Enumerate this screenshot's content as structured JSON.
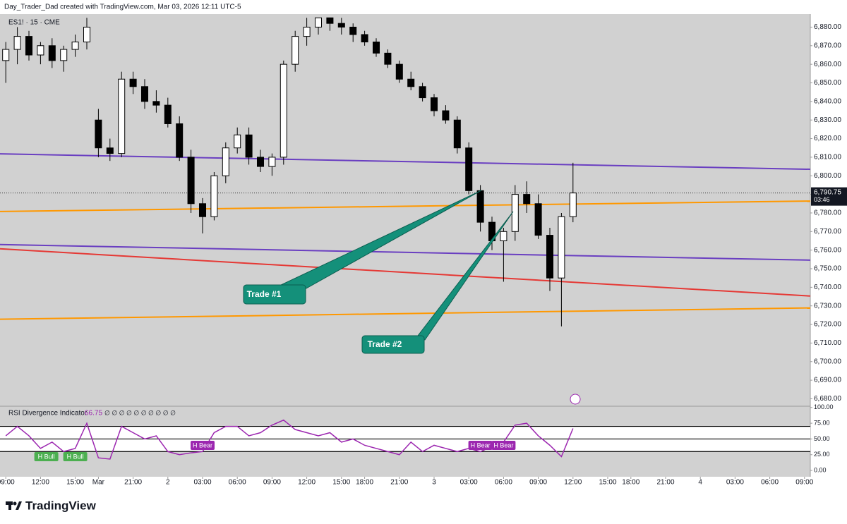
{
  "header": {
    "text": "Day_Trader_Dad created with TradingView.com, Mar 03, 2026 12:11 UTC-5",
    "symbol": "ES1! · 15 · CME",
    "brand": "TradingView"
  },
  "chart_data": [
    {
      "type": "candlestick",
      "x": [
        0,
        1,
        2,
        3,
        4,
        5,
        6,
        7,
        8,
        9,
        10,
        11,
        12,
        13,
        14,
        15,
        16,
        17,
        18,
        19,
        20,
        21,
        22,
        23,
        24,
        25,
        26,
        27,
        28,
        29,
        30,
        31,
        32,
        33,
        34,
        35,
        36,
        37,
        38,
        39,
        40,
        41,
        42,
        43,
        44,
        45,
        46,
        47,
        48,
        49
      ],
      "open": [
        6862,
        6868,
        6875,
        6865,
        6870,
        6862,
        6868,
        6872,
        6830,
        6815,
        6812,
        6852,
        6848,
        6840,
        6838,
        6828,
        6810,
        6785,
        6778,
        6800,
        6815,
        6822,
        6810,
        6805,
        6810,
        6860,
        6875,
        6880,
        6885,
        6882,
        6880,
        6876,
        6872,
        6866,
        6860,
        6852,
        6848,
        6842,
        6835,
        6830,
        6815,
        6792,
        6775,
        6765,
        6770,
        6790,
        6785,
        6768,
        6745,
        6778
      ],
      "high": [
        6872,
        6880,
        6878,
        6872,
        6874,
        6870,
        6876,
        6885,
        6836,
        6820,
        6856,
        6856,
        6852,
        6846,
        6842,
        6832,
        6814,
        6788,
        6802,
        6818,
        6826,
        6826,
        6814,
        6812,
        6862,
        6878,
        6885,
        6885,
        6885,
        6885,
        6882,
        6878,
        6874,
        6868,
        6862,
        6856,
        6850,
        6844,
        6838,
        6832,
        6818,
        6795,
        6778,
        6772,
        6795,
        6797,
        6790,
        6772,
        6780,
        6807
      ],
      "low": [
        6850,
        6860,
        6862,
        6860,
        6858,
        6856,
        6864,
        6868,
        6810,
        6808,
        6810,
        6844,
        6836,
        6834,
        6826,
        6808,
        6780,
        6769,
        6776,
        6796,
        6812,
        6806,
        6802,
        6800,
        6806,
        6856,
        6870,
        6876,
        6878,
        6876,
        6872,
        6870,
        6864,
        6858,
        6850,
        6846,
        6840,
        6832,
        6828,
        6812,
        6790,
        6770,
        6760,
        6743,
        6765,
        6780,
        6766,
        6738,
        6719,
        6775
      ],
      "close": [
        6868,
        6875,
        6865,
        6870,
        6862,
        6868,
        6872,
        6880,
        6815,
        6812,
        6852,
        6848,
        6840,
        6838,
        6828,
        6810,
        6785,
        6778,
        6800,
        6815,
        6822,
        6810,
        6805,
        6810,
        6860,
        6875,
        6880,
        6885,
        6882,
        6880,
        6876,
        6872,
        6866,
        6860,
        6852,
        6848,
        6842,
        6835,
        6830,
        6815,
        6792,
        6775,
        6765,
        6770,
        6790,
        6785,
        6768,
        6745,
        6778,
        6790.75
      ],
      "up_color": "#ffffff",
      "down_color": "#000000",
      "xlim": [
        -0.5,
        69.5
      ],
      "ylim": [
        6676,
        6887
      ],
      "yticks": [
        {
          "value": 6680,
          "label": "6,680.00"
        },
        {
          "value": 6690,
          "label": "6,690.00"
        },
        {
          "value": 6700,
          "label": "6,700.00"
        },
        {
          "value": 6710,
          "label": "6,710.00"
        },
        {
          "value": 6720,
          "label": "6,720.00"
        },
        {
          "value": 6730,
          "label": "6,730.00"
        },
        {
          "value": 6740,
          "label": "6,740.00"
        },
        {
          "value": 6750,
          "label": "6,750.00"
        },
        {
          "value": 6760,
          "label": "6,760.00"
        },
        {
          "value": 6770,
          "label": "6,770.00"
        },
        {
          "value": 6780,
          "label": "6,780.00"
        },
        {
          "value": 6790,
          "label": "6,790.00"
        },
        {
          "value": 6800,
          "label": "6,800.00"
        },
        {
          "value": 6810,
          "label": "6,810.00"
        },
        {
          "value": 6820,
          "label": "6,820.00"
        },
        {
          "value": 6830,
          "label": "6,830.00"
        },
        {
          "value": 6840,
          "label": "6,840.00"
        },
        {
          "value": 6850,
          "label": "6,850.00"
        },
        {
          "value": 6860,
          "label": "6,860.00"
        },
        {
          "value": 6870,
          "label": "6,870.00"
        },
        {
          "value": 6880,
          "label": "6,880.00"
        }
      ],
      "xticks": [
        {
          "value": 0,
          "label": "09:00"
        },
        {
          "value": 3,
          "label": "12:00"
        },
        {
          "value": 6,
          "label": "15:00"
        },
        {
          "value": 8,
          "label": "Mar"
        },
        {
          "value": 11,
          "label": "21:00"
        },
        {
          "value": 14,
          "label": "2"
        },
        {
          "value": 17,
          "label": "03:00"
        },
        {
          "value": 20,
          "label": "06:00"
        },
        {
          "value": 23,
          "label": "09:00"
        },
        {
          "value": 26,
          "label": "12:00"
        },
        {
          "value": 29,
          "label": "15:00"
        },
        {
          "value": 31,
          "label": "18:00"
        },
        {
          "value": 34,
          "label": "21:00"
        },
        {
          "value": 37,
          "label": "3"
        },
        {
          "value": 40,
          "label": "03:00"
        },
        {
          "value": 43,
          "label": "06:00"
        },
        {
          "value": 46,
          "label": "09:00"
        },
        {
          "value": 49,
          "label": "12:00"
        },
        {
          "value": 52,
          "label": "15:00"
        },
        {
          "value": 54,
          "label": "18:00"
        },
        {
          "value": 57,
          "label": "21:00"
        },
        {
          "value": 60,
          "label": "4"
        },
        {
          "value": 63,
          "label": "03:00"
        },
        {
          "value": 66,
          "label": "06:00"
        },
        {
          "value": 69,
          "label": "09:00"
        }
      ],
      "lines": [
        {
          "color": "#6a3fc1",
          "x": [
            -0.5,
            69.5
          ],
          "y": [
            6811.8,
            6803.5
          ]
        },
        {
          "color": "#6a3fc1",
          "x": [
            -0.5,
            69.5
          ],
          "y": [
            6763,
            6754.6
          ]
        },
        {
          "color": "#e53935",
          "x": [
            -0.5,
            69.5
          ],
          "y": [
            6760.7,
            6735.3
          ]
        },
        {
          "color": "#ff9800",
          "x": [
            -0.5,
            69.5
          ],
          "y": [
            6780.8,
            6786.4
          ]
        },
        {
          "color": "#ff9800",
          "x": [
            -0.5,
            69.5
          ],
          "y": [
            6722.8,
            6728.9
          ]
        }
      ],
      "last_price": {
        "value": 6790.75,
        "label": "6,790.75"
      },
      "countdown": "03:46",
      "annotations": [
        "Trade #1",
        "Trade #2"
      ]
    },
    {
      "type": "line",
      "title": "RSI Divergence Indicator",
      "inputs": "∅ ∅ ∅ ∅ ∅ ∅ ∅ ∅ ∅ ∅",
      "x": [
        0,
        1,
        2,
        3,
        4,
        5,
        6,
        7,
        8,
        9,
        10,
        11,
        12,
        13,
        14,
        15,
        16,
        17,
        18,
        19,
        20,
        21,
        22,
        23,
        24,
        25,
        26,
        27,
        28,
        29,
        30,
        31,
        32,
        33,
        34,
        35,
        36,
        37,
        38,
        39,
        40,
        41,
        42,
        43,
        44,
        45,
        46,
        47,
        48,
        49
      ],
      "series": [
        {
          "color": "#9c27b0",
          "values": [
            55,
            70,
            55,
            35,
            45,
            30,
            35,
            75,
            20,
            18,
            70,
            60,
            50,
            55,
            30,
            25,
            28,
            30,
            60,
            70,
            70,
            55,
            60,
            72,
            80,
            65,
            60,
            55,
            60,
            45,
            50,
            40,
            35,
            30,
            25,
            45,
            30,
            40,
            35,
            30,
            35,
            30,
            38,
            45,
            72,
            75,
            55,
            40,
            22,
            66.75
          ]
        }
      ],
      "xlim": [
        -0.5,
        69.5
      ],
      "ylim": [
        -10,
        102
      ],
      "yticks": [
        {
          "value": 0,
          "label": "0.00"
        },
        {
          "value": 25,
          "label": "25.00"
        },
        {
          "value": 50,
          "label": "50.00"
        },
        {
          "value": 75,
          "label": "75.00"
        },
        {
          "value": 100,
          "label": "100.00"
        }
      ],
      "levels": [
        70,
        50,
        30
      ],
      "signals": [
        {
          "x": 3.5,
          "label": "H Bull",
          "color": "#4caf50"
        },
        {
          "x": 6,
          "label": "H Bull",
          "color": "#4caf50"
        },
        {
          "x": 17,
          "label": "H Bear",
          "color": "#9c27b0"
        },
        {
          "x": 41,
          "label": "H Bear",
          "color": "#9c27b0"
        },
        {
          "x": 43,
          "label": "H Bear",
          "color": "#9c27b0"
        }
      ]
    }
  ]
}
